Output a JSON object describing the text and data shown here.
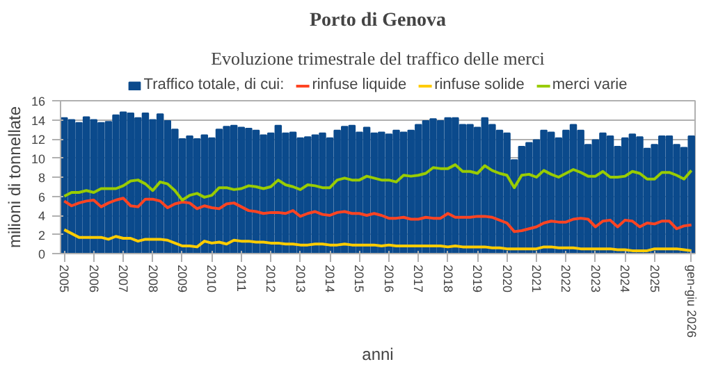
{
  "chart_data": {
    "type": "bar",
    "title": "Porto di Genova",
    "subtitle": "Evoluzione trimestrale del traffico delle merci",
    "xlabel": "anni",
    "ylabel": "milioni di tonnellate",
    "categories": [
      "2005",
      null,
      null,
      null,
      "2006",
      null,
      null,
      null,
      "2007",
      null,
      null,
      null,
      "2008",
      null,
      null,
      null,
      "2009",
      null,
      null,
      null,
      "2010",
      null,
      null,
      null,
      "2011",
      null,
      null,
      null,
      "2012",
      null,
      null,
      null,
      "2013",
      null,
      null,
      null,
      "2014",
      null,
      null,
      null,
      "2015",
      null,
      null,
      null,
      "2016",
      null,
      null,
      null,
      "2017",
      null,
      null,
      null,
      "2018",
      null,
      null,
      null,
      "2019",
      null,
      null,
      null,
      "2020",
      null,
      null,
      null,
      "2021",
      null,
      null,
      null,
      "2022",
      null,
      null,
      null,
      "2023",
      null,
      null,
      null,
      "2024",
      null,
      null,
      null,
      "2025",
      null,
      null,
      null,
      null,
      "gen-giu 2026"
    ],
    "ylim": [
      0,
      16
    ],
    "yticks": [
      0,
      2,
      4,
      6,
      8,
      10,
      12,
      14,
      16
    ],
    "grid": "y",
    "legend": "top",
    "series": [
      {
        "name": "Traffico totale, di cui:",
        "color": "#0b4a8c",
        "values": [
          14.2,
          14.0,
          13.7,
          14.3,
          14.0,
          13.7,
          13.8,
          14.5,
          14.8,
          14.7,
          14.2,
          14.7,
          14.0,
          14.6,
          13.9,
          13.0,
          12.0,
          12.3,
          12.0,
          12.4,
          12.1,
          13.0,
          13.3,
          13.4,
          13.2,
          13.1,
          12.9,
          12.4,
          12.6,
          13.4,
          12.6,
          12.7,
          12.1,
          12.2,
          12.4,
          12.6,
          12.1,
          12.9,
          13.3,
          13.4,
          12.7,
          13.2,
          12.6,
          12.7,
          12.5,
          12.9,
          12.7,
          12.9,
          13.5,
          13.9,
          14.1,
          13.9,
          14.2,
          14.2,
          13.5,
          13.5,
          13.2,
          14.2,
          13.5,
          12.9,
          12.6,
          9.8,
          11.2,
          11.6,
          11.9,
          12.9,
          12.7,
          12.1,
          12.9,
          13.5,
          12.9,
          11.4,
          11.9,
          12.6,
          12.3,
          11.2,
          12.1,
          12.5,
          12.2,
          11.0,
          11.4,
          12.3,
          12.3,
          11.4,
          11.1,
          12.3
        ]
      },
      {
        "name": "rinfuse liquide",
        "type": "line",
        "color": "#ff4422",
        "values": [
          5.5,
          5.0,
          5.3,
          5.5,
          5.6,
          4.9,
          5.3,
          5.6,
          5.8,
          5.0,
          4.9,
          5.7,
          5.7,
          5.5,
          4.8,
          5.2,
          5.4,
          5.3,
          4.7,
          5.0,
          4.8,
          4.7,
          5.2,
          5.3,
          4.9,
          4.5,
          4.4,
          4.2,
          4.3,
          4.3,
          4.2,
          4.5,
          3.9,
          4.2,
          4.4,
          4.1,
          4.0,
          4.3,
          4.4,
          4.2,
          4.2,
          4.0,
          4.2,
          4.0,
          3.7,
          3.7,
          3.8,
          3.6,
          3.6,
          3.8,
          3.7,
          3.7,
          4.2,
          3.8,
          3.8,
          3.8,
          3.9,
          3.9,
          3.8,
          3.5,
          3.2,
          2.3,
          2.4,
          2.6,
          2.8,
          3.2,
          3.4,
          3.3,
          3.3,
          3.6,
          3.7,
          3.6,
          2.8,
          3.4,
          3.5,
          2.8,
          3.5,
          3.4,
          2.8,
          3.2,
          3.1,
          3.4,
          3.4,
          2.6,
          2.9,
          3.0
        ]
      },
      {
        "name": "rinfuse solide",
        "type": "line",
        "color": "#ffcc00",
        "values": [
          2.5,
          2.1,
          1.7,
          1.7,
          1.7,
          1.7,
          1.5,
          1.8,
          1.6,
          1.6,
          1.3,
          1.5,
          1.5,
          1.5,
          1.4,
          1.1,
          0.8,
          0.8,
          0.7,
          1.3,
          1.1,
          1.2,
          1.0,
          1.4,
          1.3,
          1.3,
          1.2,
          1.2,
          1.1,
          1.1,
          1.0,
          1.0,
          0.9,
          0.9,
          1.0,
          1.0,
          0.9,
          0.9,
          1.0,
          0.9,
          0.9,
          0.9,
          0.9,
          0.8,
          0.9,
          0.8,
          0.8,
          0.8,
          0.8,
          0.8,
          0.8,
          0.8,
          0.7,
          0.8,
          0.7,
          0.7,
          0.7,
          0.7,
          0.6,
          0.6,
          0.5,
          0.5,
          0.5,
          0.5,
          0.5,
          0.7,
          0.7,
          0.6,
          0.6,
          0.6,
          0.5,
          0.5,
          0.5,
          0.5,
          0.5,
          0.4,
          0.4,
          0.3,
          0.3,
          0.3,
          0.5,
          0.5,
          0.5,
          0.5,
          0.4,
          0.3
        ]
      },
      {
        "name": "merci varie",
        "type": "line",
        "color": "#99cc00",
        "values": [
          6.0,
          6.4,
          6.4,
          6.6,
          6.4,
          6.8,
          6.8,
          6.8,
          7.1,
          7.6,
          7.7,
          7.3,
          6.6,
          7.5,
          7.3,
          6.6,
          5.6,
          6.1,
          6.3,
          5.9,
          6.1,
          6.9,
          6.9,
          6.7,
          6.8,
          7.1,
          7.0,
          6.8,
          7.0,
          7.7,
          7.2,
          7.0,
          6.7,
          7.2,
          7.1,
          6.9,
          6.9,
          7.7,
          7.9,
          7.7,
          7.7,
          8.1,
          7.9,
          7.7,
          7.7,
          7.5,
          8.2,
          8.1,
          8.2,
          8.4,
          9.0,
          8.9,
          8.9,
          9.3,
          8.6,
          8.6,
          8.4,
          9.2,
          8.7,
          8.4,
          8.2,
          6.9,
          8.2,
          8.3,
          8.0,
          8.7,
          8.3,
          8.0,
          8.4,
          8.8,
          8.5,
          8.1,
          8.1,
          8.6,
          8.0,
          8.0,
          8.1,
          8.6,
          8.4,
          7.8,
          7.8,
          8.5,
          8.5,
          8.2,
          7.8,
          8.7
        ]
      }
    ]
  }
}
